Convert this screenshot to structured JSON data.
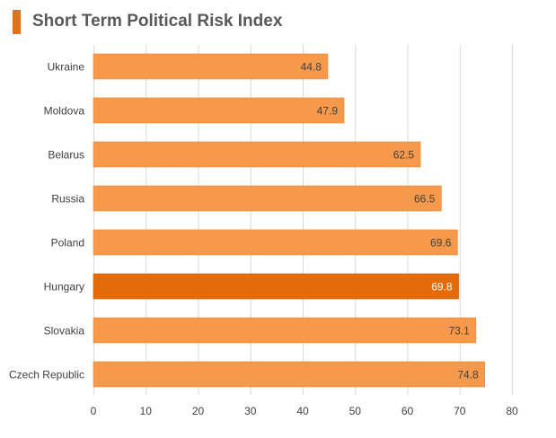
{
  "chart_data": {
    "type": "bar",
    "orientation": "horizontal",
    "title": "Short Term Political Risk Index",
    "categories": [
      "Ukraine",
      "Moldova",
      "Belarus",
      "Russia",
      "Poland",
      "Hungary",
      "Slovakia",
      "Czech Republic"
    ],
    "values": [
      44.8,
      47.9,
      62.5,
      66.5,
      69.6,
      69.8,
      73.1,
      74.8
    ],
    "value_labels": [
      "44.8",
      "47.9",
      "62.5",
      "66.5",
      "69.6",
      "69.8",
      "73.1",
      "74.8"
    ],
    "highlight_category": "Hungary",
    "xlim": [
      0,
      80
    ],
    "x_ticks": [
      0,
      10,
      20,
      30,
      40,
      50,
      60,
      70,
      80
    ],
    "grid": "vertical",
    "legend": "none",
    "xlabel": "",
    "ylabel": ""
  },
  "colors": {
    "accent": "#e2711d",
    "bar": "#f7994a",
    "bar_highlight": "#e56b0a",
    "label_text": "#404040",
    "highlight_label_text": "#ffffff",
    "grid": "#d9d9d9",
    "axis_text": "#404040",
    "title_text": "#595959"
  }
}
